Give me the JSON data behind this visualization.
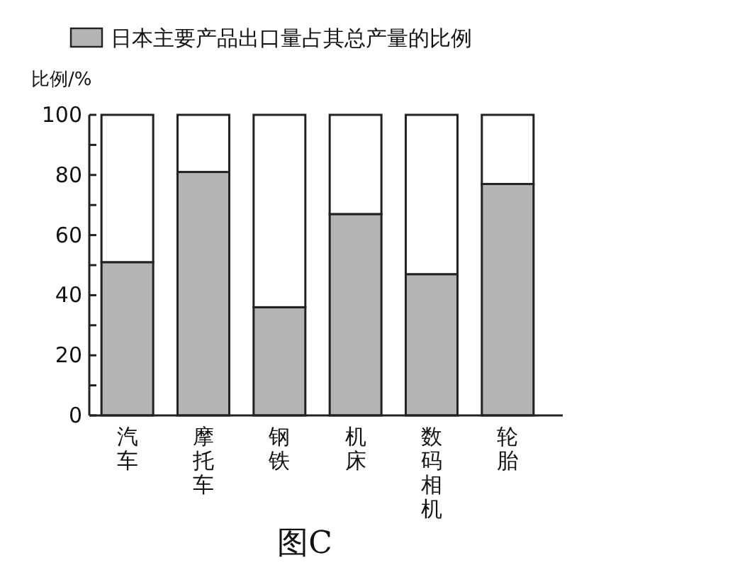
{
  "chart_data": {
    "type": "bar",
    "ylabel": "比例/%",
    "stacked": true,
    "legend": "top",
    "categories": [
      "汽车",
      "摩托车",
      "钢铁",
      "机床",
      "数码相机",
      "轮胎"
    ],
    "series": [
      {
        "name": "日本主要产品出口量占其总产量的比例",
        "color": "#b4b4b4",
        "values": [
          51,
          81,
          36,
          67,
          47,
          77
        ]
      },
      {
        "color": "#ffffff",
        "values": [
          49,
          19,
          64,
          33,
          53,
          23
        ]
      }
    ],
    "ylim": [
      0,
      100
    ],
    "yticks": [
      0,
      {
        "value": 10,
        "label": null
      },
      20,
      {
        "value": 30,
        "label": null
      },
      40,
      {
        "value": 50,
        "label": null
      },
      60,
      {
        "value": 70,
        "label": null
      },
      80,
      {
        "value": 90,
        "label": null
      },
      100
    ],
    "annotations": [
      "图C"
    ]
  }
}
